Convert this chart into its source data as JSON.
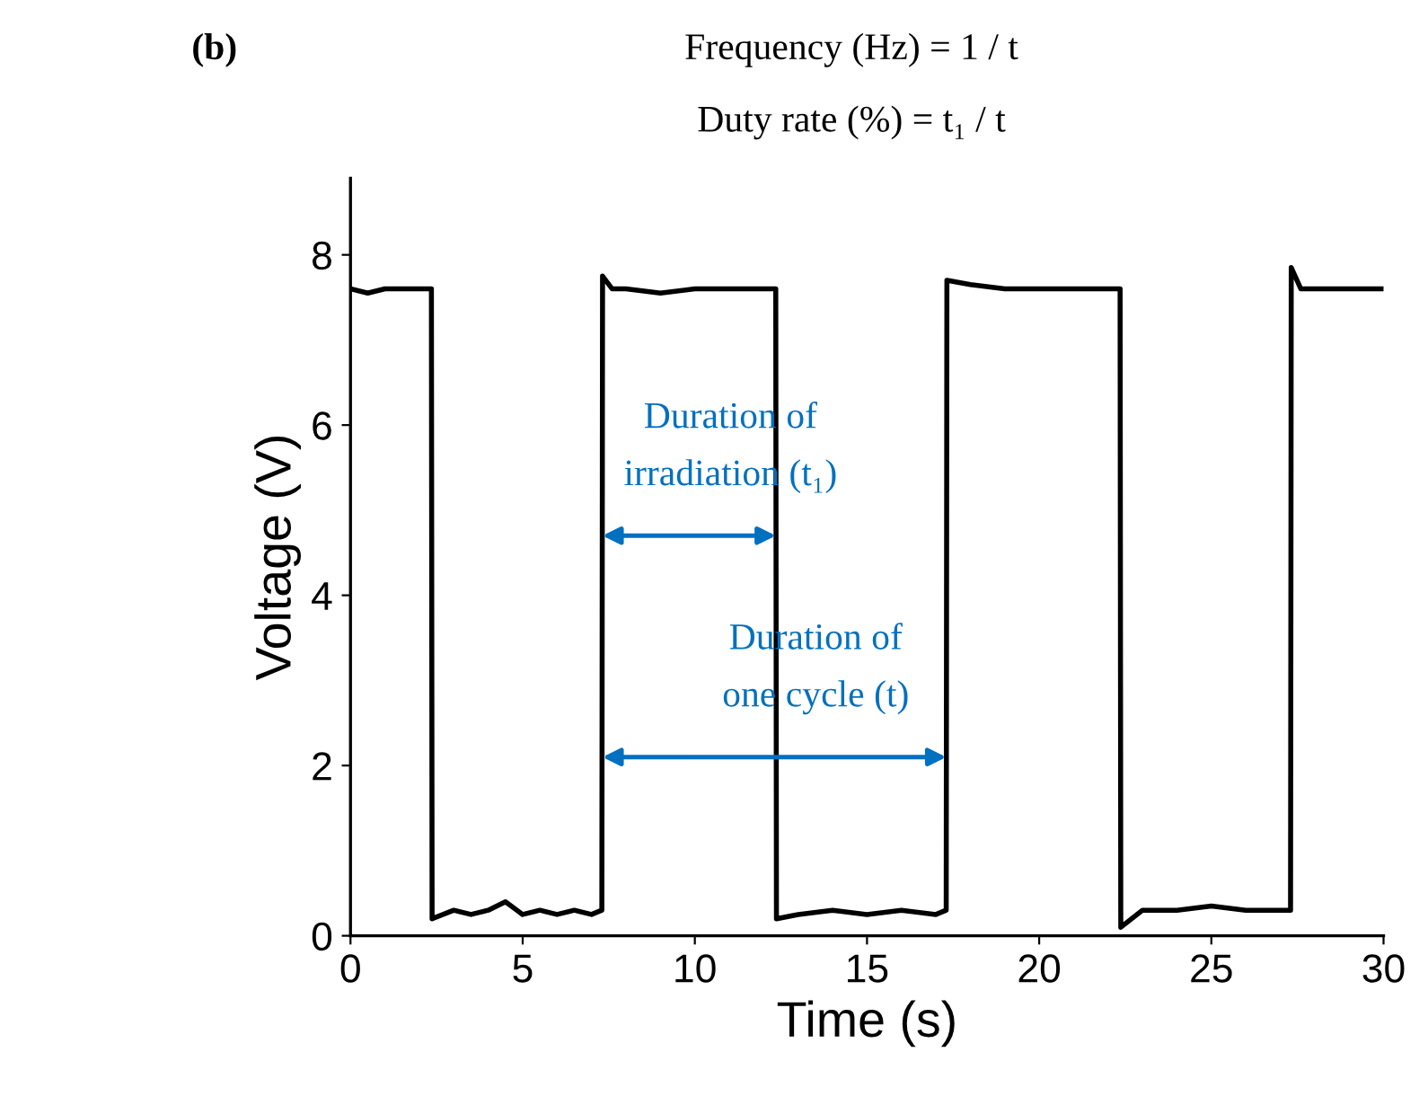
{
  "chart_data": {
    "type": "line",
    "title": "Frequency (Hz) = 1 / t",
    "subtitle": "Duty rate (%) = t₁ / t",
    "xlabel": "Time (s)",
    "ylabel": "Voltage (V)",
    "series": [
      {
        "color": "#000000",
        "x": [
          0,
          0.5,
          1,
          1.5,
          2,
          2.35,
          2.37,
          3,
          3.5,
          4,
          4.5,
          5,
          5.5,
          6,
          6.5,
          7,
          7.3,
          7.32,
          7.6,
          8,
          9,
          10,
          11,
          12,
          12.35,
          12.37,
          13,
          14,
          15,
          16,
          17,
          17.3,
          17.32,
          18,
          19,
          20,
          21,
          22,
          22.35,
          22.37,
          23,
          24,
          25,
          26,
          27,
          27.3,
          27.32,
          27.6,
          28,
          29,
          30
        ],
        "values": [
          7.6,
          7.55,
          7.6,
          7.6,
          7.6,
          7.6,
          0.2,
          0.3,
          0.25,
          0.3,
          0.4,
          0.25,
          0.3,
          0.25,
          0.3,
          0.25,
          0.3,
          7.75,
          7.6,
          7.6,
          7.55,
          7.6,
          7.6,
          7.6,
          7.6,
          0.2,
          0.25,
          0.3,
          0.25,
          0.3,
          0.25,
          0.3,
          7.7,
          7.65,
          7.6,
          7.6,
          7.6,
          7.6,
          7.6,
          0.1,
          0.3,
          0.3,
          0.35,
          0.3,
          0.3,
          0.3,
          7.85,
          7.6,
          7.6,
          7.6,
          7.6
        ]
      }
    ],
    "xlim": [
      0,
      30
    ],
    "ylim": [
      0,
      8.9
    ],
    "xticks": [
      0,
      5,
      10,
      15,
      20,
      25,
      30
    ],
    "yticks": [
      0,
      2,
      4,
      6,
      8
    ],
    "grid": false,
    "legend": false,
    "marker": "none",
    "line_style": "solid",
    "annotations": [
      "(b)",
      {
        "text": "Duration of\nirradiation (t₁)",
        "x": 12.35,
        "y": 4.7
      },
      {
        "text": "Duration of\none cycle (t)",
        "x": 17.3,
        "y": 2.1
      }
    ]
  }
}
